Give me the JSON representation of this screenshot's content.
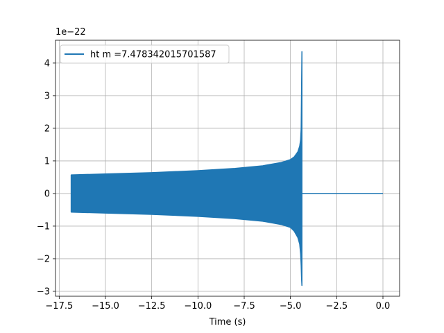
{
  "chart_data": {
    "type": "line",
    "title": "",
    "xlabel": "Time (s)",
    "ylabel": "",
    "y_offset_label": "1e−22",
    "y_scale_exponent": -22,
    "xlim": [
      -17.7,
      0.9
    ],
    "ylim": [
      -3.15,
      4.7
    ],
    "grid": true,
    "legend_position": "top-left",
    "x_ticks": [
      -17.5,
      -15.0,
      -12.5,
      -10.0,
      -7.5,
      -5.0,
      -2.5,
      0.0
    ],
    "x_tick_labels": [
      "−17.5",
      "−15.0",
      "−12.5",
      "−10.0",
      "−7.5",
      "−5.0",
      "−2.5",
      "0.0"
    ],
    "y_ticks": [
      -3,
      -2,
      -1,
      0,
      1,
      2,
      3,
      4
    ],
    "y_tick_labels": [
      "−3",
      "−2",
      "−1",
      "0",
      "1",
      "2",
      "3",
      "4"
    ],
    "series": [
      {
        "name": "ht m =7.478342015701587",
        "color": "#1f77b4",
        "rendering": "dense oscillation shown as envelope band",
        "upper_envelope": {
          "x": [
            -16.85,
            -15.0,
            -12.5,
            -10.0,
            -8.0,
            -6.5,
            -5.5,
            -5.0,
            -4.8,
            -4.6,
            -4.5,
            -4.45,
            -4.42,
            -4.4,
            -4.38
          ],
          "y": [
            0.57,
            0.6,
            0.64,
            0.7,
            0.77,
            0.85,
            0.95,
            1.04,
            1.12,
            1.28,
            1.45,
            1.65,
            2.0,
            3.2,
            4.35
          ]
        },
        "lower_envelope": {
          "x": [
            -16.85,
            -15.0,
            -12.5,
            -10.0,
            -8.0,
            -6.5,
            -5.5,
            -5.0,
            -4.8,
            -4.6,
            -4.5,
            -4.45,
            -4.42,
            -4.4,
            -4.38
          ],
          "y": [
            -0.57,
            -0.6,
            -0.64,
            -0.7,
            -0.77,
            -0.85,
            -0.95,
            -1.04,
            -1.15,
            -1.35,
            -1.55,
            -1.85,
            -2.2,
            -2.6,
            -2.82
          ]
        },
        "tail": {
          "x": [
            -4.38,
            0.0
          ],
          "y": [
            0.0,
            0.0
          ]
        }
      }
    ]
  }
}
